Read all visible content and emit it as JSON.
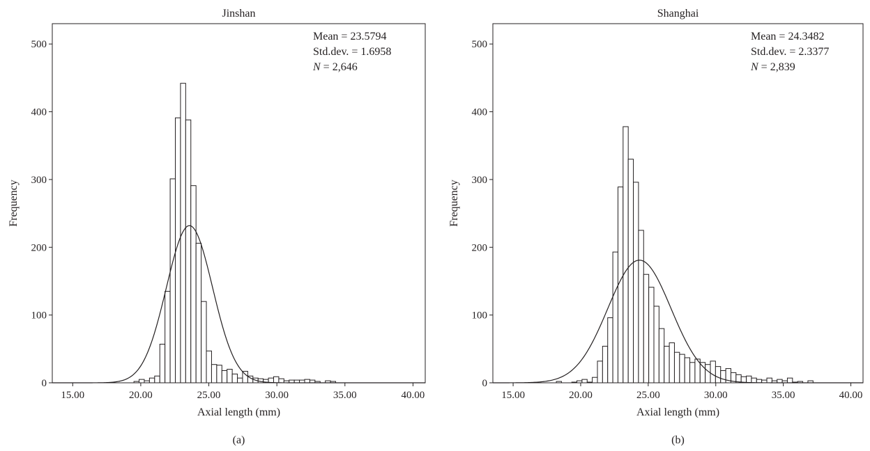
{
  "chart_data": [
    {
      "type": "bar",
      "title": "Jinshan",
      "panel_label": "(a)",
      "xlabel": "Axial length (mm)",
      "ylabel": "Frequency",
      "xlim": [
        13.5,
        40.9
      ],
      "ylim": [
        0,
        530
      ],
      "xticks": [
        15,
        20,
        25,
        30,
        35,
        40
      ],
      "xtick_labels": [
        "15.00",
        "20.00",
        "25.00",
        "30.00",
        "35.00",
        "40.00"
      ],
      "yticks": [
        0,
        100,
        200,
        300,
        400,
        500
      ],
      "ytick_labels": [
        "0",
        "100",
        "200",
        "300",
        "400",
        "500"
      ],
      "stats": {
        "mean": "Mean = 23.5794",
        "sd": "Std.dev. = 1.6958",
        "n_prefix": "N",
        "n_value": " = 2,646"
      },
      "bins": {
        "start": 19.5,
        "width": 0.38,
        "counts": [
          2,
          5,
          3,
          7,
          10,
          57,
          135,
          301,
          391,
          442,
          388,
          291,
          206,
          120,
          47,
          27,
          26,
          18,
          20,
          13,
          7,
          17,
          10,
          7,
          6,
          5,
          7,
          9,
          6,
          3,
          4,
          4,
          4,
          5,
          4,
          2,
          0,
          3,
          2
        ]
      },
      "normal_curve": {
        "mean": 23.5794,
        "sd": 1.6958,
        "peak": 232
      }
    },
    {
      "type": "bar",
      "title": "Shanghai",
      "panel_label": "(b)",
      "xlabel": "Axial length (mm)",
      "ylabel": "Frequency",
      "xlim": [
        13.5,
        40.9
      ],
      "ylim": [
        0,
        530
      ],
      "xticks": [
        15,
        20,
        25,
        30,
        35,
        40
      ],
      "xtick_labels": [
        "15.00",
        "20.00",
        "25.00",
        "30.00",
        "35.00",
        "40.00"
      ],
      "yticks": [
        0,
        100,
        200,
        300,
        400,
        500
      ],
      "ytick_labels": [
        "0",
        "100",
        "200",
        "300",
        "400",
        "500"
      ],
      "stats": {
        "mean": "Mean = 24.3482",
        "sd": "Std.dev. = 2.3377",
        "n_prefix": "N",
        "n_value": " = 2,839"
      },
      "bins": {
        "start": 18.2,
        "width": 0.38,
        "counts": [
          2,
          0,
          0,
          1,
          3,
          5,
          1,
          8,
          32,
          54,
          96,
          193,
          289,
          378,
          330,
          296,
          225,
          160,
          141,
          113,
          80,
          54,
          59,
          45,
          42,
          37,
          30,
          35,
          30,
          27,
          32,
          24,
          18,
          21,
          15,
          12,
          9,
          10,
          7,
          5,
          4,
          7,
          3,
          5,
          3,
          7,
          1,
          2,
          0,
          3
        ]
      },
      "normal_curve": {
        "mean": 24.3482,
        "sd": 2.3377,
        "peak": 181
      }
    }
  ]
}
